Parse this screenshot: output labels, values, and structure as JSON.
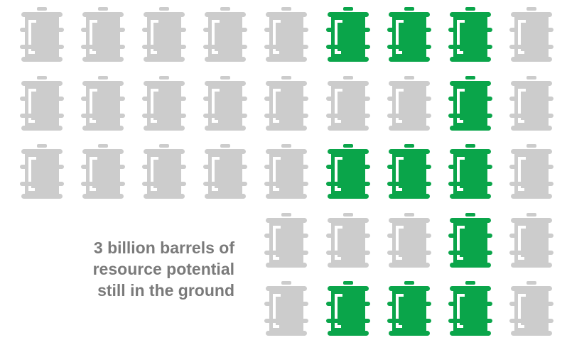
{
  "caption": {
    "line1": "3 billion barrels of",
    "line2": "resource potential",
    "line3": "still in the ground"
  },
  "colors": {
    "filled": "#0aa54a",
    "empty": "#cccccc",
    "caption_text": "#7a7a7a",
    "background": "#ffffff"
  },
  "icon": "oil-barrel-icon",
  "grid": {
    "rows": [
      [
        "empty",
        "empty",
        "empty",
        "empty",
        "empty",
        "filled",
        "filled",
        "filled",
        "empty"
      ],
      [
        "empty",
        "empty",
        "empty",
        "empty",
        "empty",
        "empty",
        "empty",
        "filled",
        "empty"
      ],
      [
        "empty",
        "empty",
        "empty",
        "empty",
        "empty",
        "filled",
        "filled",
        "filled",
        "empty"
      ],
      [
        "none",
        "none",
        "none",
        "none",
        "empty",
        "empty",
        "empty",
        "filled",
        "empty"
      ],
      [
        "none",
        "none",
        "none",
        "none",
        "empty",
        "filled",
        "filled",
        "filled",
        "empty"
      ]
    ]
  }
}
